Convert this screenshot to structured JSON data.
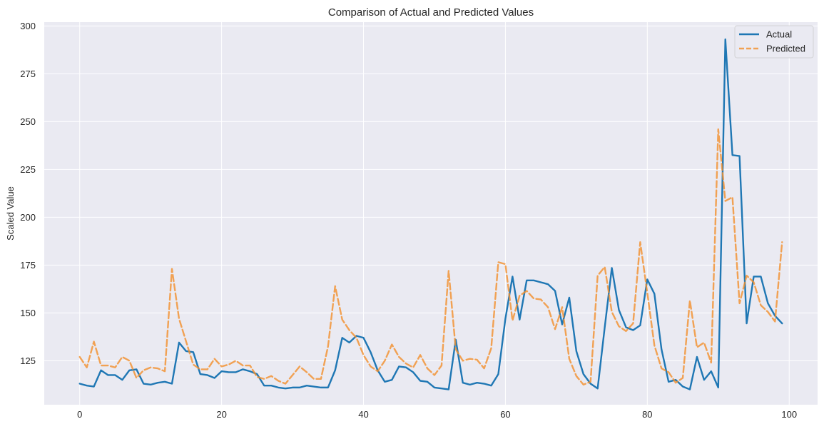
{
  "chart_data": {
    "type": "line",
    "title": "Comparison of Actual and Predicted Values",
    "xlabel": "",
    "ylabel": "Scaled Value",
    "xlim": [
      -5,
      104
    ],
    "ylim": [
      102,
      302
    ],
    "x_ticks": [
      0,
      20,
      40,
      60,
      80,
      100
    ],
    "y_ticks": [
      125,
      150,
      175,
      200,
      225,
      250,
      275,
      300
    ],
    "grid": true,
    "legend_position": "top-right",
    "x": [
      0,
      1,
      2,
      3,
      4,
      5,
      6,
      7,
      8,
      9,
      10,
      11,
      12,
      13,
      14,
      15,
      16,
      17,
      18,
      19,
      20,
      21,
      22,
      23,
      24,
      25,
      26,
      27,
      28,
      29,
      30,
      31,
      32,
      33,
      34,
      35,
      36,
      37,
      38,
      39,
      40,
      41,
      42,
      43,
      44,
      45,
      46,
      47,
      48,
      49,
      50,
      51,
      52,
      53,
      54,
      55,
      56,
      57,
      58,
      59,
      60,
      61,
      62,
      63,
      64,
      65,
      66,
      67,
      68,
      69,
      70,
      71,
      72,
      73,
      74,
      75,
      76,
      77,
      78,
      79,
      80,
      81,
      82,
      83,
      84,
      85,
      86,
      87,
      88,
      89,
      90,
      91,
      92,
      93,
      94,
      95,
      96,
      97,
      98,
      99
    ],
    "series": [
      {
        "name": "Actual",
        "color": "#1f77b4",
        "style": "solid",
        "values": [
          113,
          112,
          111.5,
          120,
          117.5,
          117.5,
          115,
          120,
          120.5,
          113,
          112.5,
          113.5,
          114,
          113,
          134.5,
          130,
          129.5,
          118,
          117.5,
          116,
          119.5,
          119,
          119,
          120.5,
          119.5,
          118,
          112,
          112,
          111,
          110.5,
          111,
          111,
          112,
          111.5,
          111,
          111,
          120,
          137,
          134.5,
          138,
          137,
          129.5,
          120,
          114,
          115,
          122,
          121.5,
          119,
          114.5,
          114,
          111,
          110.5,
          110,
          136,
          113.5,
          112.5,
          113.5,
          113,
          112,
          118,
          147,
          169,
          146.5,
          167,
          167,
          166,
          165,
          161.5,
          144,
          158,
          130,
          118,
          113,
          110.5,
          142.5,
          173.5,
          151.5,
          142.5,
          141,
          143.5,
          167.5,
          160,
          131,
          114,
          115,
          111.5,
          110,
          127,
          115,
          119.5,
          111,
          293,
          232.5,
          232,
          144.5,
          169,
          169,
          155,
          148.5,
          144.5
        ]
      },
      {
        "name": "Predicted",
        "color": "#f28e2b",
        "style": "dashed",
        "values": [
          127,
          121.5,
          135,
          122.5,
          122.5,
          121.5,
          127,
          125,
          116,
          120,
          121.5,
          121,
          119.5,
          173,
          147,
          135,
          123,
          120.5,
          120.5,
          126,
          122,
          123,
          125,
          122.5,
          122.5,
          116.5,
          115.5,
          117,
          114.5,
          113,
          117.5,
          122,
          119,
          115.5,
          115.5,
          132.5,
          164,
          146.5,
          141,
          137,
          128,
          122,
          119.5,
          125,
          133.5,
          127,
          123.5,
          121.5,
          128,
          121,
          117.5,
          122.5,
          172,
          131,
          125,
          126,
          125.5,
          121,
          131.5,
          176.5,
          175.5,
          146,
          159,
          161.5,
          157.5,
          157,
          153,
          141.5,
          153,
          126,
          117,
          112.5,
          114,
          169.5,
          174,
          150.5,
          143,
          140.5,
          144.5,
          187,
          160.5,
          133,
          121,
          119,
          113.5,
          116,
          156.5,
          132,
          134.5,
          124,
          246,
          208.5,
          210.5,
          155,
          169.5,
          166,
          154,
          150.5,
          145.5,
          187
        ]
      }
    ]
  }
}
